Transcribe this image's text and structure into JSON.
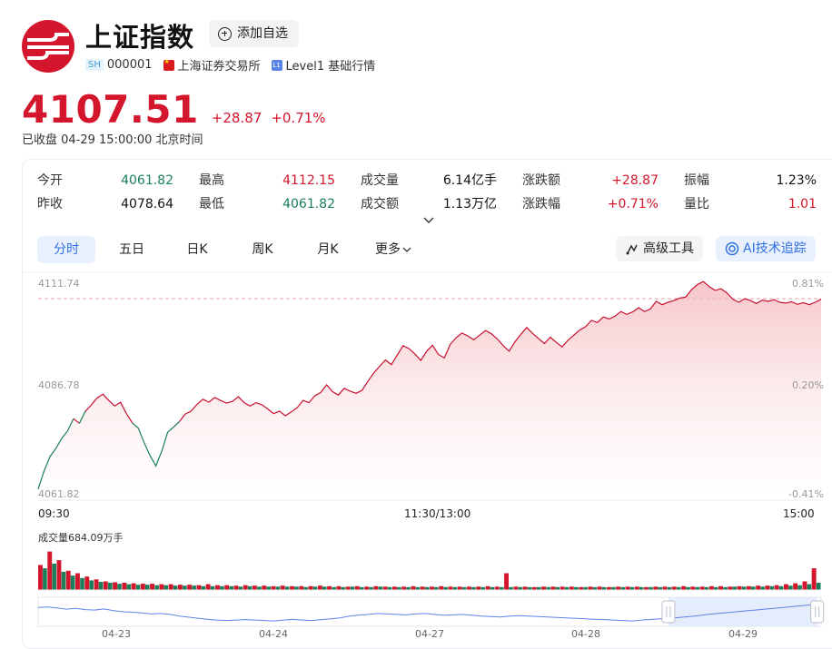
{
  "stock": {
    "name": "上证指数",
    "market_tag": "SH",
    "code": "000001",
    "exchange": "上海证券交易所",
    "level_tag": "L1",
    "level": "Level1 基础行情",
    "add_label": "添加自选"
  },
  "quote": {
    "price": "4107.51",
    "change": "+28.87",
    "change_pct": "+0.71%",
    "status": "已收盘  04-29 15:00:00 北京时间"
  },
  "stats": [
    {
      "label": "今开",
      "value": "4061.82",
      "color": "green"
    },
    {
      "label": "最高",
      "value": "4112.15",
      "color": "red"
    },
    {
      "label": "成交量",
      "value": "6.14亿手",
      "color": "dark"
    },
    {
      "label": "涨跌额",
      "value": "+28.87",
      "color": "red"
    },
    {
      "label": "振幅",
      "value": "1.23%",
      "color": "dark"
    },
    {
      "label": "昨收",
      "value": "4078.64",
      "color": "dark"
    },
    {
      "label": "最低",
      "value": "4061.82",
      "color": "green"
    },
    {
      "label": "成交额",
      "value": "1.13万亿",
      "color": "dark"
    },
    {
      "label": "涨跌幅",
      "value": "+0.71%",
      "color": "red"
    },
    {
      "label": "量比",
      "value": "1.01",
      "color": "red"
    }
  ],
  "tabs": [
    "分时",
    "五日",
    "日K",
    "周K",
    "月K",
    "更多"
  ],
  "tools": {
    "advanced": "高级工具",
    "ai": "AI技术追踪"
  },
  "colors": {
    "up": "#d4162c",
    "down": "#1a7f5a",
    "accent": "#2f6fe4"
  },
  "chart_data": {
    "type": "line",
    "y_labels": {
      "top": "4111.74",
      "mid": "4086.78",
      "bottom": "4061.82"
    },
    "pct_labels": {
      "top": "0.81%",
      "mid": "0.20%",
      "bottom": "-0.41%"
    },
    "time_labels": [
      "09:30",
      "11:30/13:00",
      "15:00"
    ],
    "ylim": [
      4061.82,
      4111.74
    ],
    "prev_close": 4078.64,
    "series_values": [
      4062.5,
      4066.8,
      4070.2,
      4072.1,
      4074.5,
      4076.3,
      4079.2,
      4078.1,
      4080.9,
      4082.4,
      4084.1,
      4085.0,
      4083.5,
      4082.2,
      4083.1,
      4080.4,
      4078.2,
      4077.0,
      4073.5,
      4070.5,
      4068.0,
      4071.5,
      4076.0,
      4077.2,
      4078.5,
      4080.3,
      4081.0,
      4082.6,
      4083.8,
      4083.1,
      4084.2,
      4083.5,
      4082.9,
      4083.3,
      4084.4,
      4083.0,
      4082.2,
      4083.0,
      4082.5,
      4081.5,
      4080.4,
      4081.0,
      4079.9,
      4080.8,
      4081.8,
      4083.5,
      4083.0,
      4084.6,
      4085.4,
      4087.2,
      4085.6,
      4084.8,
      4086.4,
      4085.7,
      4085.2,
      4085.9,
      4088.0,
      4090.0,
      4091.6,
      4093.1,
      4092.0,
      4094.3,
      4096.5,
      4095.8,
      4094.5,
      4093.0,
      4095.2,
      4096.6,
      4094.4,
      4093.6,
      4096.8,
      4098.4,
      4099.5,
      4098.8,
      4097.9,
      4099.0,
      4100.1,
      4099.3,
      4098.1,
      4096.5,
      4095.2,
      4097.4,
      4099.2,
      4100.8,
      4099.4,
      4098.2,
      4097.0,
      4098.5,
      4097.3,
      4096.2,
      4097.8,
      4099.0,
      4100.2,
      4101.0,
      4102.5,
      4102.0,
      4103.3,
      4102.8,
      4103.5,
      4104.6,
      4103.9,
      4104.5,
      4105.5,
      4104.6,
      4105.2,
      4107.0,
      4106.2,
      4106.8,
      4107.2,
      4107.8,
      4108.0,
      4109.8,
      4111.0,
      4111.7,
      4110.5,
      4109.6,
      4110.0,
      4109.0,
      4107.5,
      4106.8,
      4107.6,
      4107.2,
      4106.5,
      4107.3,
      4107.0,
      4107.4,
      4106.8,
      4106.6,
      4106.9,
      4106.3,
      4106.7,
      4106.2,
      4106.8,
      4107.5
    ]
  },
  "volume": {
    "label": "成交量684.09万手",
    "bars_up": [
      0.52,
      0.8,
      0.62,
      0.4,
      0.35,
      0.28,
      0.22,
      0.18,
      0.16,
      0.15,
      0.14,
      0.13,
      0.13,
      0.12,
      0.12,
      0.11,
      0.11,
      0.1,
      0.12,
      0.1,
      0.1,
      0.09,
      0.1,
      0.09,
      0.09,
      0.08,
      0.09,
      0.08,
      0.08,
      0.08,
      0.09,
      0.08,
      0.08,
      0.07,
      0.08,
      0.07,
      0.08,
      0.07,
      0.07,
      0.07,
      0.08,
      0.07,
      0.07,
      0.08,
      0.07,
      0.07,
      0.07,
      0.07,
      0.08,
      0.07,
      0.35,
      0.07,
      0.07,
      0.06,
      0.07,
      0.07,
      0.07,
      0.07,
      0.06,
      0.07,
      0.07,
      0.06,
      0.07,
      0.07,
      0.07,
      0.06,
      0.07,
      0.07,
      0.07,
      0.08,
      0.07,
      0.07,
      0.08,
      0.08,
      0.07,
      0.08,
      0.08,
      0.09,
      0.09,
      0.1,
      0.12,
      0.14,
      0.18,
      0.45
    ],
    "bars_down": [
      0.45,
      0.55,
      0.38,
      0.3,
      0.25,
      0.2,
      0.17,
      0.15,
      0.13,
      0.12,
      0.11,
      0.11,
      0.1,
      0.1,
      0.09,
      0.09,
      0.09,
      0.08,
      0.08,
      0.08,
      0.08,
      0.07,
      0.08,
      0.07,
      0.07,
      0.07,
      0.07,
      0.07,
      0.06,
      0.07,
      0.07,
      0.06,
      0.06,
      0.07,
      0.06,
      0.06,
      0.07,
      0.06,
      0.06,
      0.06,
      0.06,
      0.06,
      0.06,
      0.06,
      0.06,
      0.06,
      0.06,
      0.06,
      0.06,
      0.06,
      0.06,
      0.06,
      0.06,
      0.06,
      0.06,
      0.06,
      0.06,
      0.06,
      0.06,
      0.06,
      0.06,
      0.06,
      0.06,
      0.06,
      0.06,
      0.06,
      0.06,
      0.06,
      0.06,
      0.06,
      0.06,
      0.06,
      0.06,
      0.06,
      0.07,
      0.07,
      0.07,
      0.07,
      0.08,
      0.08,
      0.09,
      0.1,
      0.12,
      0.15
    ]
  },
  "navigator": {
    "dates": [
      "04-23",
      "04-24",
      "04-27",
      "04-28",
      "04-29"
    ],
    "values": [
      0.7,
      0.72,
      0.68,
      0.62,
      0.66,
      0.6,
      0.58,
      0.63,
      0.55,
      0.5,
      0.48,
      0.45,
      0.4,
      0.42,
      0.38,
      0.3,
      0.25,
      0.2,
      0.15,
      0.12,
      0.1,
      0.12,
      0.14,
      0.12,
      0.1,
      0.08,
      0.12,
      0.15,
      0.12,
      0.1,
      0.14,
      0.18,
      0.22,
      0.3,
      0.35,
      0.38,
      0.42,
      0.4,
      0.38,
      0.36,
      0.4,
      0.42,
      0.38,
      0.34,
      0.36,
      0.38,
      0.34,
      0.3,
      0.28,
      0.26,
      0.3,
      0.32,
      0.3,
      0.28,
      0.26,
      0.24,
      0.22,
      0.2,
      0.18,
      0.16,
      0.14,
      0.12,
      0.1,
      0.08,
      0.12,
      0.15,
      0.18,
      0.2,
      0.24,
      0.28,
      0.32,
      0.38,
      0.42,
      0.46,
      0.5,
      0.54,
      0.58,
      0.62,
      0.66,
      0.7,
      0.74,
      0.78,
      0.82,
      0.84
    ],
    "selection_start": 0.805,
    "selection_end": 0.995
  }
}
